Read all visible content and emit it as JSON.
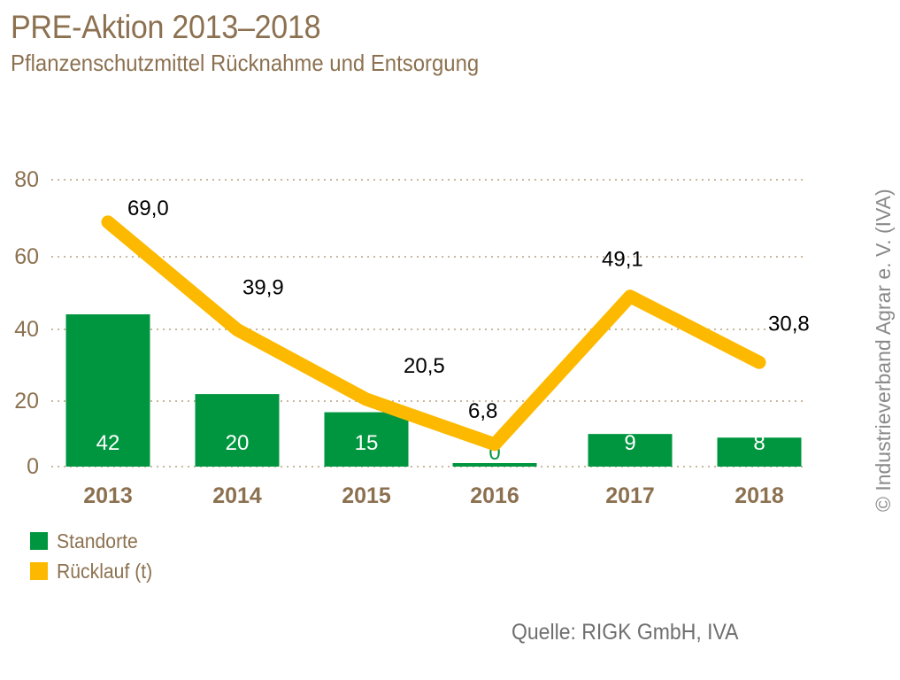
{
  "header": {
    "title": "PRE-Aktion 2013–2018",
    "subtitle": "Pflanzenschutzmittel Rücknahme und Entsorgung"
  },
  "colors": {
    "title": "#8c7150",
    "bar": "#00963f",
    "line": "#fdb900",
    "grid": "#c8b89e",
    "source": "#6f6f6f",
    "copyright": "#8a8a8a"
  },
  "chart_data": {
    "type": "bar+line",
    "title": "PRE-Aktion 2013–2018",
    "subtitle": "Pflanzenschutzmittel Rücknahme und Entsorgung",
    "xlabel": "",
    "ylabel": "",
    "categories": [
      "2013",
      "2014",
      "2015",
      "2016",
      "2017",
      "2018"
    ],
    "yticks": [
      0,
      20,
      40,
      60,
      80
    ],
    "ytick_labels": [
      "0",
      "20",
      "40",
      "60",
      "80"
    ],
    "ylim": [
      0,
      80
    ],
    "grid": true,
    "grid_style": "dotted",
    "series": [
      {
        "name": "Standorte",
        "type": "bar",
        "values": [
          42,
          20,
          15,
          0,
          9,
          8
        ],
        "labels": [
          "42",
          "20",
          "15",
          "0",
          "9",
          "8"
        ]
      },
      {
        "name": "Rücklauf (t)",
        "type": "line",
        "values": [
          69.0,
          39.9,
          20.5,
          6.8,
          49.1,
          30.8
        ],
        "labels": [
          "69,0",
          "39,9",
          "20,5",
          "6,8",
          "49,1",
          "30,8"
        ]
      }
    ],
    "legend": [
      {
        "label": "Standorte",
        "color": "#00963f"
      },
      {
        "label": "Rücklauf (t)",
        "color": "#fdb900"
      }
    ],
    "legend_position": "bottom-left"
  },
  "footer": {
    "source": "Quelle: RIGK GmbH, IVA",
    "copyright": "© Industrieverband Agrar e. V. (IVA)"
  }
}
